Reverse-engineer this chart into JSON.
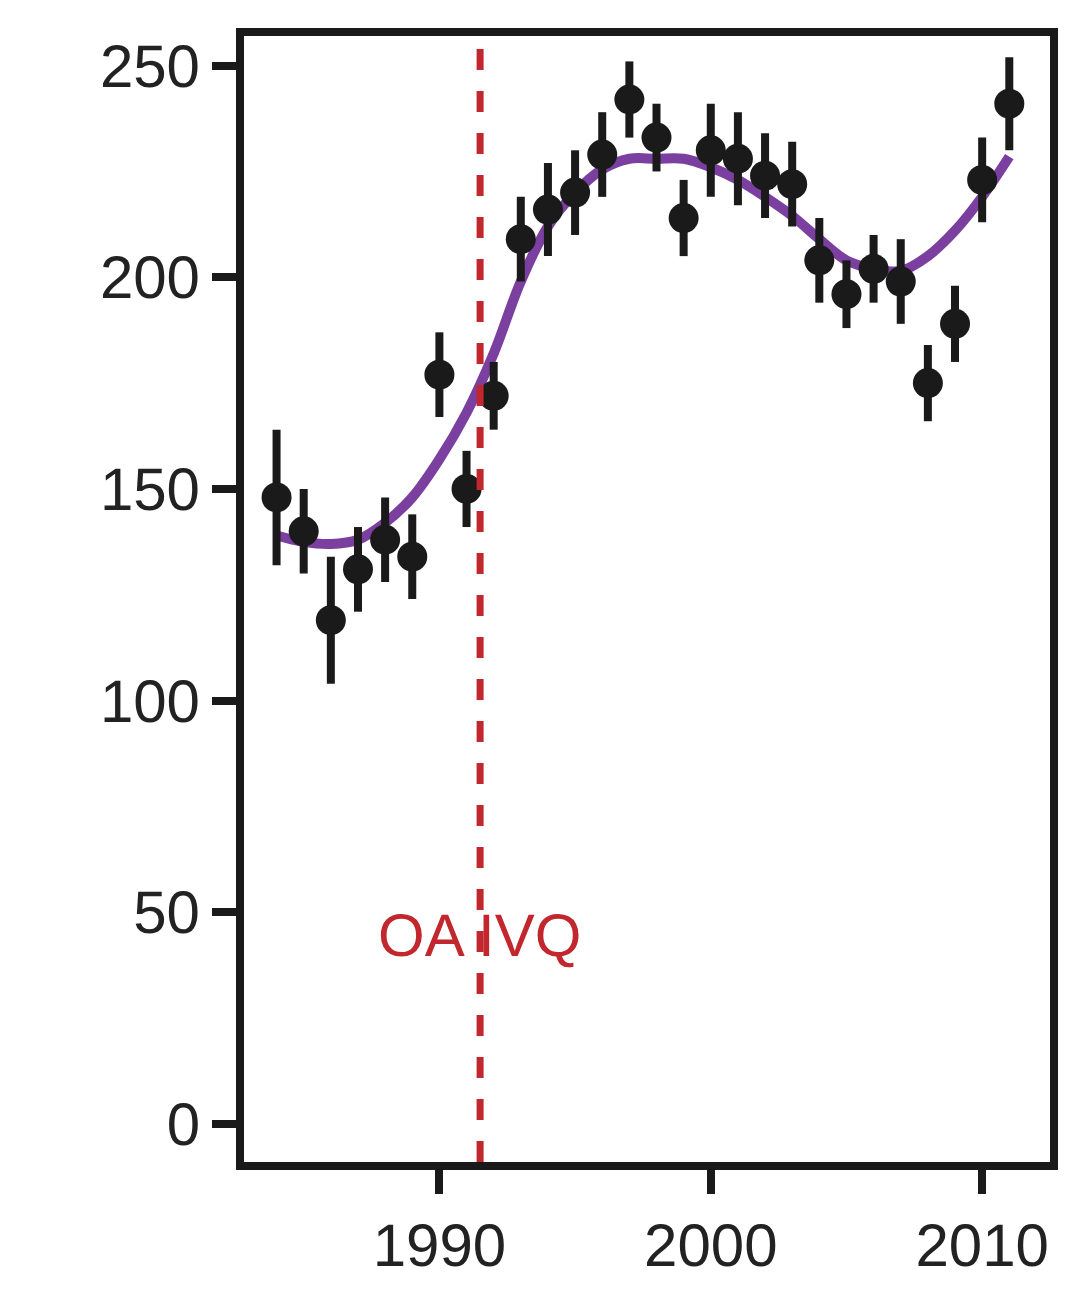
{
  "chart_data": {
    "type": "scatter",
    "xlim": [
      1982.8,
      2012.5
    ],
    "xticks": [
      1990,
      2000,
      2010
    ],
    "ylim": [
      -9,
      257
    ],
    "yticks": [
      0,
      50,
      100,
      150,
      200,
      250
    ],
    "series": [
      {
        "type": "line",
        "color": "#7b3fa0",
        "marker": "none",
        "line_style": "solid",
        "x": [
          1984,
          1985,
          1986,
          1987,
          1988,
          1989,
          1990,
          1991,
          1992,
          1993,
          1994,
          1995,
          1996,
          1997,
          1998,
          1999,
          2000,
          2001,
          2002,
          2003,
          2004,
          2005,
          2006,
          2007,
          2008,
          2009,
          2010,
          2011
        ],
        "values": [
          139,
          137.5,
          137,
          138,
          142,
          148,
          157,
          168,
          182,
          199,
          212,
          220,
          225.5,
          228,
          228,
          228,
          226,
          223,
          219,
          214.5,
          209,
          204,
          202,
          201.5,
          205,
          211,
          219,
          228.5
        ]
      },
      {
        "color": "#1a1a1a",
        "marker": "circle",
        "x": [
          1984,
          1985,
          1986,
          1987,
          1988,
          1989,
          1990,
          1991,
          1992,
          1993,
          1994,
          1995,
          1996,
          1997,
          1998,
          1999,
          2000,
          2001,
          2002,
          2003,
          2004,
          2005,
          2006,
          2007,
          2008,
          2009,
          2010,
          2011
        ],
        "values": [
          148,
          140,
          119,
          131,
          138,
          134,
          177,
          150,
          172,
          209,
          216,
          220,
          229,
          242,
          233,
          214,
          230,
          228,
          224,
          222,
          204,
          196,
          202,
          199,
          175,
          189,
          223,
          241
        ],
        "errors": [
          16,
          10,
          15,
          10,
          10,
          10,
          10,
          9,
          8,
          10,
          11,
          10,
          10,
          9,
          8,
          9,
          11,
          11,
          10,
          10,
          10,
          8,
          8,
          10,
          9,
          9,
          10,
          11
        ]
      }
    ],
    "ref_lines": [
      {
        "axis": "x",
        "value": 1991.5,
        "label": "OA IVQ",
        "color": "#c1272d",
        "line_style": "dashed"
      }
    ]
  }
}
